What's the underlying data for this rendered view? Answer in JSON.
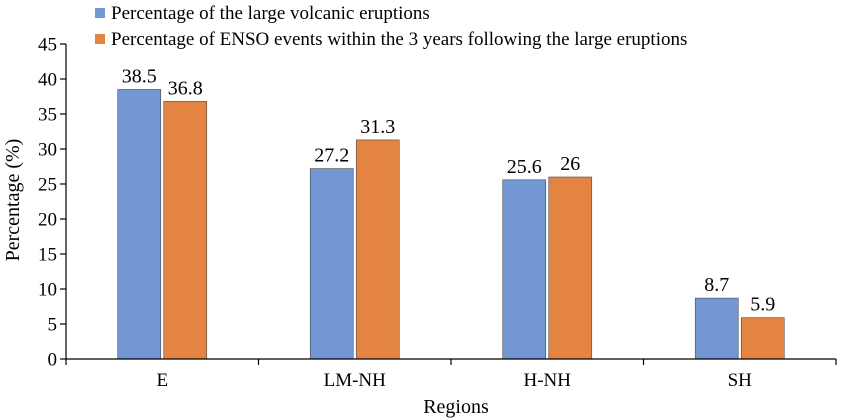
{
  "chart_data": {
    "type": "bar",
    "title": "",
    "xlabel": "Regions",
    "ylabel": "Percentage (%)",
    "ylim": [
      0,
      45
    ],
    "yticks": [
      0,
      5,
      10,
      15,
      20,
      25,
      30,
      35,
      40,
      45
    ],
    "grid": false,
    "legend_position": "top",
    "categories": [
      "E",
      "LM-NH",
      "H-NH",
      "SH"
    ],
    "series": [
      {
        "name": "Percentage of the large volcanic eruptions",
        "color": "#7297d2",
        "values": [
          38.5,
          27.2,
          25.6,
          8.7
        ],
        "labels": [
          "38.5",
          "27.2",
          "25.6",
          "8.7"
        ]
      },
      {
        "name": "Percentage of ENSO events within the 3 years following the large eruptions",
        "color": "#e38443",
        "values": [
          36.8,
          31.3,
          26,
          5.9
        ],
        "labels": [
          "36.8",
          "31.3",
          "26",
          "5.9"
        ]
      }
    ]
  }
}
